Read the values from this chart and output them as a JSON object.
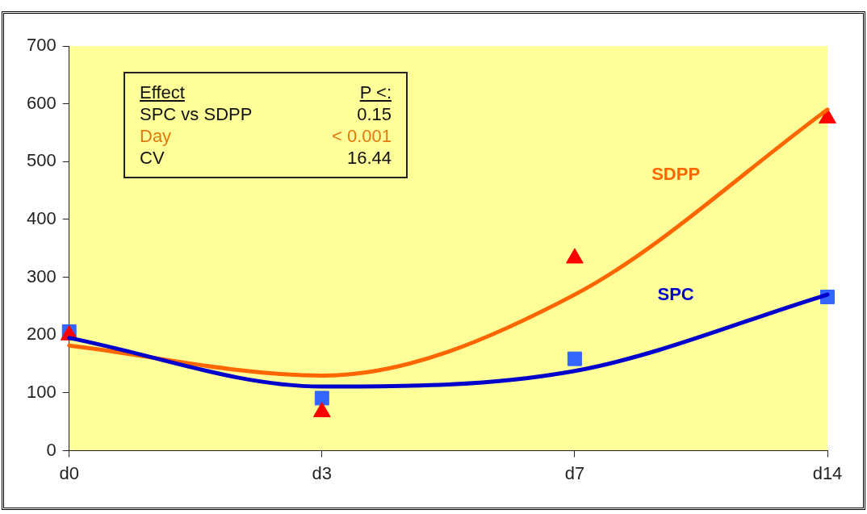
{
  "chart_data": {
    "type": "line",
    "categories": [
      "d0",
      "d3",
      "d7",
      "d14"
    ],
    "ylim": [
      0,
      700
    ],
    "yticks": [
      0,
      100,
      200,
      300,
      400,
      500,
      600,
      700
    ],
    "grid": false,
    "legend": false,
    "series": [
      {
        "type": "line",
        "name": "SDPP",
        "color": "#ff6600",
        "marker": "none",
        "values": [
          182,
          130,
          270,
          590
        ]
      },
      {
        "type": "line",
        "name": "SPC",
        "color": "#0000cc",
        "marker": "none",
        "values": [
          195,
          111,
          138,
          270
        ]
      },
      {
        "type": "scatter",
        "color": "#3366ff",
        "marker": "square",
        "values": [
          206,
          91,
          159,
          266
        ]
      },
      {
        "type": "scatter",
        "color": "#ff0000",
        "marker": "triangle",
        "values": [
          200,
          67,
          333,
          575
        ]
      }
    ],
    "annotations": [
      "Effect",
      "P <:",
      "SPC vs SDPP",
      "0.15",
      "Day",
      "< 0.001",
      "CV",
      "16.44"
    ]
  }
}
